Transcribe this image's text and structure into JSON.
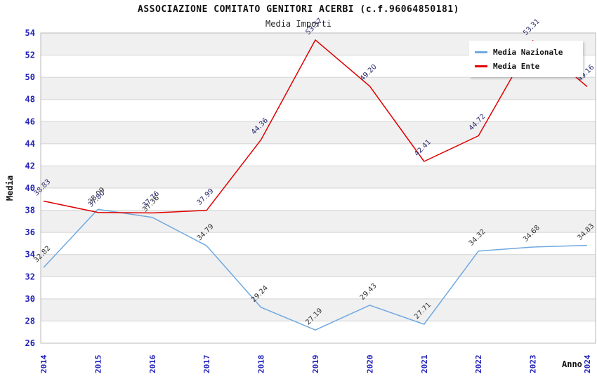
{
  "chart_data": {
    "type": "line",
    "title": "ASSOCIAZIONE COMITATO GENITORI ACERBI (c.f.96064850181)",
    "subtitle": "Media Importi",
    "xlabel": "Anno",
    "ylabel": "Media",
    "x": [
      2014,
      2015,
      2016,
      2017,
      2018,
      2019,
      2020,
      2021,
      2022,
      2023,
      2024
    ],
    "ylim": [
      26,
      54
    ],
    "ytick_step": 2,
    "grid": "horizontal-bands-and-gridlines",
    "legend_position": "top-right",
    "series": [
      {
        "name": "Media Nazionale",
        "color": "#6fa8e0",
        "label_color": "#333333",
        "values": [
          32.82,
          38.09,
          37.36,
          34.79,
          29.24,
          27.19,
          29.43,
          27.71,
          34.32,
          34.68,
          34.83
        ]
      },
      {
        "name": "Media Ente",
        "color": "#e00000",
        "label_color": "#28286e",
        "values": [
          38.83,
          37.8,
          37.76,
          37.99,
          44.36,
          53.37,
          49.2,
          42.41,
          44.72,
          53.31,
          49.16
        ]
      }
    ],
    "colors": {
      "tick_label": "#2222bb",
      "band_gray": "#f0f0f0",
      "band_white": "#ffffff",
      "gridline": "#d4d4d4",
      "plot_border": "#b8b8b8",
      "title": "#111111"
    }
  }
}
